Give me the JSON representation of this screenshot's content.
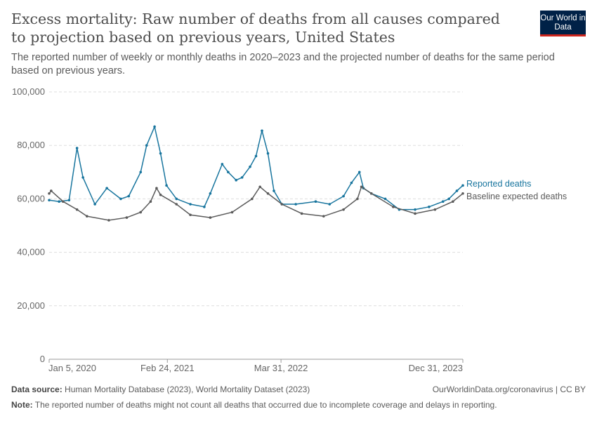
{
  "header": {
    "title": "Excess mortality: Raw number of deaths from all causes compared to projection based on previous years, United States",
    "subtitle": "The reported number of weekly or monthly deaths in 2020–2023 and the projected number of deaths for the same period based on previous years.",
    "logo": "Our World in Data"
  },
  "footer": {
    "source_label": "Data source:",
    "source": "Human Mortality Database (2023), World Mortality Dataset (2023)",
    "link": "OurWorldinData.org/coronavirus | CC BY",
    "note_label": "Note:",
    "note": "The reported number of deaths might not count all deaths that occurred due to incomplete coverage and delays in reporting."
  },
  "chart_data": {
    "type": "line",
    "title": "",
    "xlabel": "",
    "ylabel": "",
    "xlim": [
      "2020-01-05",
      "2023-12-31"
    ],
    "ylim": [
      0,
      100000
    ],
    "grid": true,
    "legend": "right, inline labels at line ends",
    "y_ticks": [
      {
        "v": 0,
        "label": "0"
      },
      {
        "v": 20000,
        "label": "20,000"
      },
      {
        "v": 40000,
        "label": "40,000"
      },
      {
        "v": 60000,
        "label": "60,000"
      },
      {
        "v": 80000,
        "label": "80,000"
      },
      {
        "v": 100000,
        "label": "100,000"
      }
    ],
    "x_ticks": [
      {
        "d": "2020-01-05",
        "label": "Jan 5, 2020"
      },
      {
        "d": "2021-02-24",
        "label": "Feb 24, 2021"
      },
      {
        "d": "2022-03-31",
        "label": "Mar 31, 2022"
      },
      {
        "d": "2023-12-31",
        "label": "Dec 31, 2023"
      }
    ],
    "series": [
      {
        "name": "Reported deaths",
        "color": "#18759e",
        "points": [
          [
            "2020-01-05",
            59500
          ],
          [
            "2020-02-09",
            59000
          ],
          [
            "2020-03-15",
            59500
          ],
          [
            "2020-04-12",
            79000
          ],
          [
            "2020-05-03",
            68000
          ],
          [
            "2020-06-14",
            58000
          ],
          [
            "2020-07-26",
            64000
          ],
          [
            "2020-09-13",
            60000
          ],
          [
            "2020-10-11",
            61000
          ],
          [
            "2020-11-22",
            70000
          ],
          [
            "2020-12-13",
            80000
          ],
          [
            "2021-01-10",
            87000
          ],
          [
            "2021-01-31",
            77000
          ],
          [
            "2021-02-21",
            65000
          ],
          [
            "2021-03-28",
            60000
          ],
          [
            "2021-05-16",
            58000
          ],
          [
            "2021-07-04",
            57000
          ],
          [
            "2021-07-25",
            62000
          ],
          [
            "2021-09-05",
            73000
          ],
          [
            "2021-09-26",
            70000
          ],
          [
            "2021-10-24",
            67000
          ],
          [
            "2021-11-14",
            68000
          ],
          [
            "2021-12-12",
            72000
          ],
          [
            "2022-01-02",
            76000
          ],
          [
            "2022-01-23",
            85500
          ],
          [
            "2022-02-13",
            77000
          ],
          [
            "2022-03-06",
            63000
          ],
          [
            "2022-04-03",
            58000
          ],
          [
            "2022-05-22",
            58000
          ],
          [
            "2022-07-31",
            59000
          ],
          [
            "2022-09-18",
            58000
          ],
          [
            "2022-11-06",
            61000
          ],
          [
            "2022-12-04",
            66000
          ],
          [
            "2023-01-01",
            70000
          ],
          [
            "2023-01-15",
            64000
          ],
          [
            "2023-02-12",
            62000
          ],
          [
            "2023-04-02",
            60000
          ],
          [
            "2023-05-21",
            56000
          ],
          [
            "2023-07-16",
            56000
          ],
          [
            "2023-09-03",
            57000
          ],
          [
            "2023-10-22",
            59000
          ],
          [
            "2023-11-12",
            60000
          ],
          [
            "2023-12-10",
            63000
          ],
          [
            "2023-12-31",
            65000
          ]
        ]
      },
      {
        "name": "Baseline expected deaths",
        "color": "#5b5b5b",
        "points": [
          [
            "2020-01-05",
            62000
          ],
          [
            "2020-01-12",
            63000
          ],
          [
            "2020-02-23",
            59000
          ],
          [
            "2020-04-12",
            56000
          ],
          [
            "2020-05-17",
            53500
          ],
          [
            "2020-08-02",
            52000
          ],
          [
            "2020-10-04",
            53000
          ],
          [
            "2020-11-22",
            55000
          ],
          [
            "2020-12-27",
            59000
          ],
          [
            "2021-01-17",
            64000
          ],
          [
            "2021-01-31",
            61500
          ],
          [
            "2021-03-28",
            58000
          ],
          [
            "2021-05-16",
            54000
          ],
          [
            "2021-07-25",
            53000
          ],
          [
            "2021-10-10",
            55000
          ],
          [
            "2021-12-19",
            60000
          ],
          [
            "2022-01-16",
            64500
          ],
          [
            "2022-02-13",
            62000
          ],
          [
            "2022-04-03",
            58000
          ],
          [
            "2022-06-12",
            54500
          ],
          [
            "2022-08-28",
            53500
          ],
          [
            "2022-11-06",
            56000
          ],
          [
            "2022-12-25",
            60000
          ],
          [
            "2023-01-08",
            64500
          ],
          [
            "2023-02-12",
            62000
          ],
          [
            "2023-04-30",
            57000
          ],
          [
            "2023-07-16",
            54500
          ],
          [
            "2023-09-24",
            56000
          ],
          [
            "2023-11-26",
            59000
          ],
          [
            "2023-12-31",
            62000
          ]
        ]
      }
    ]
  }
}
